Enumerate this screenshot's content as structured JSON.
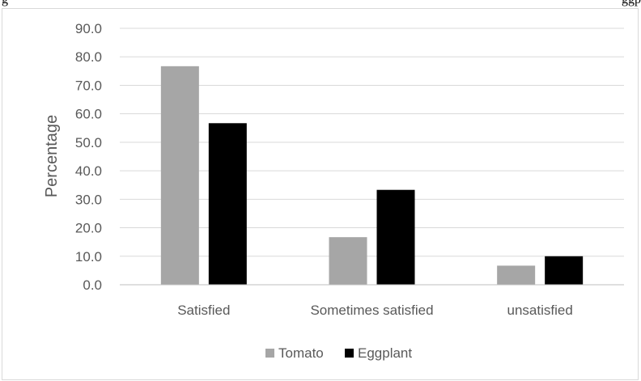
{
  "header_fragments": {
    "left": "g",
    "right": "ggp"
  },
  "chart_data": {
    "type": "bar",
    "categories": [
      "Satisfied",
      "Sometimes satisfied",
      "unsatisfied"
    ],
    "series": [
      {
        "name": "Tomato",
        "values": [
          76.7,
          16.7,
          6.7
        ],
        "color": "#a6a6a6"
      },
      {
        "name": "Eggplant",
        "values": [
          56.7,
          33.3,
          10.0
        ],
        "color": "#000000"
      }
    ],
    "title": "",
    "xlabel": "",
    "ylabel": "Percentage",
    "ylim": [
      0,
      90
    ],
    "yticks": [
      "0.0",
      "10.0",
      "20.0",
      "30.0",
      "40.0",
      "50.0",
      "60.0",
      "70.0",
      "80.0",
      "90.0"
    ],
    "grid": true,
    "legend": "bottom",
    "colors": {
      "grid": "#d9d9d9",
      "axis": "#bfbfbf",
      "text": "#595959",
      "frame": "#d9d9d9"
    }
  }
}
